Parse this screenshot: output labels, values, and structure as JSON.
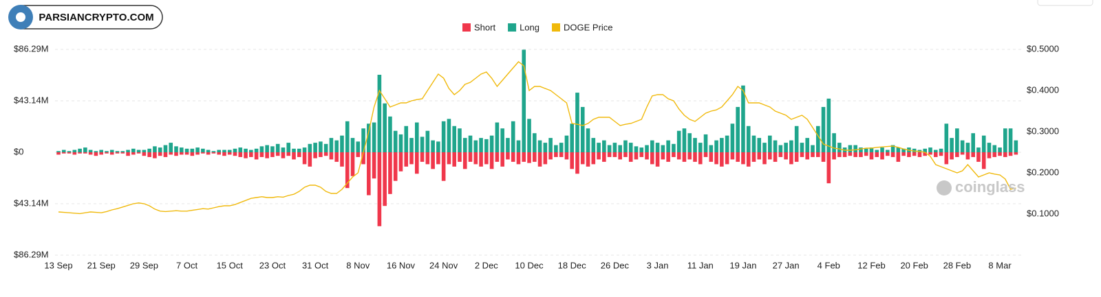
{
  "chart_data": {
    "type": "bar",
    "badge": "PARSIANCRYPTO.COM",
    "watermark": "coinglass",
    "categories": [
      "13 Sep",
      null,
      null,
      null,
      null,
      null,
      null,
      null,
      "21 Sep",
      null,
      null,
      null,
      null,
      null,
      null,
      null,
      "29 Sep",
      null,
      null,
      null,
      null,
      null,
      null,
      null,
      "7 Oct",
      null,
      null,
      null,
      null,
      null,
      null,
      null,
      "15 Oct",
      null,
      null,
      null,
      null,
      null,
      null,
      null,
      "23 Oct",
      null,
      null,
      null,
      null,
      null,
      null,
      null,
      "31 Oct",
      null,
      null,
      null,
      null,
      null,
      null,
      null,
      "8 Nov",
      null,
      null,
      null,
      null,
      null,
      null,
      null,
      "16 Nov",
      null,
      null,
      null,
      null,
      null,
      null,
      null,
      "24 Nov",
      null,
      null,
      null,
      null,
      null,
      null,
      null,
      "2 Dec",
      null,
      null,
      null,
      null,
      null,
      null,
      null,
      "10 Dec",
      null,
      null,
      null,
      null,
      null,
      null,
      null,
      "18 Dec",
      null,
      null,
      null,
      null,
      null,
      null,
      null,
      "26 Dec",
      null,
      null,
      null,
      null,
      null,
      null,
      null,
      "3 Jan",
      null,
      null,
      null,
      null,
      null,
      null,
      null,
      "11 Jan",
      null,
      null,
      null,
      null,
      null,
      null,
      null,
      "19 Jan",
      null,
      null,
      null,
      null,
      null,
      null,
      null,
      "27 Jan",
      null,
      null,
      null,
      null,
      null,
      null,
      null,
      "4 Feb",
      null,
      null,
      null,
      null,
      null,
      null,
      null,
      "12 Feb",
      null,
      null,
      null,
      null,
      null,
      null,
      null,
      "20 Feb",
      null,
      null,
      null,
      null,
      null,
      null,
      null,
      "28 Feb",
      null,
      null,
      null,
      null,
      null,
      null,
      null,
      "8 Mar",
      null,
      null,
      null
    ],
    "series": [
      {
        "name": "Short",
        "color": "#f0374b",
        "values": [
          -2,
          -1,
          -1,
          -2,
          -1,
          -1,
          -2,
          -3,
          -2,
          -1,
          -2,
          -1,
          -1,
          -3,
          -2,
          -1,
          -3,
          -4,
          -5,
          -3,
          -4,
          -2,
          -3,
          -2,
          -2,
          -3,
          -2,
          -1,
          -2,
          -1,
          -2,
          -3,
          -2,
          -3,
          -4,
          -5,
          -4,
          -6,
          -4,
          -5,
          -4,
          -3,
          -5,
          -3,
          -6,
          -4,
          -10,
          -12,
          -5,
          -4,
          -3,
          -6,
          -8,
          -12,
          -30,
          -20,
          -4,
          -10,
          -36,
          -22,
          -62,
          -45,
          -35,
          -24,
          -16,
          -12,
          -10,
          -18,
          -8,
          -10,
          -14,
          -10,
          -24,
          -10,
          -12,
          -8,
          -14,
          -8,
          -10,
          -12,
          -10,
          -14,
          -8,
          -12,
          -6,
          -8,
          -10,
          -8,
          -9,
          -8,
          -12,
          -10,
          -6,
          -4,
          -4,
          -6,
          -14,
          -18,
          -10,
          -12,
          -10,
          -6,
          -8,
          -4,
          -4,
          -6,
          -4,
          -8,
          -6,
          -4,
          -6,
          -10,
          -12,
          -6,
          -8,
          -4,
          -6,
          -8,
          -6,
          -8,
          -10,
          -4,
          -8,
          -10,
          -12,
          -10,
          -6,
          -8,
          -10,
          -12,
          -8,
          -6,
          -10,
          -6,
          -8,
          -4,
          -6,
          -10,
          -8,
          -4,
          -6,
          -4,
          -4,
          -8,
          -26,
          -6,
          -4,
          -4,
          -3,
          -4,
          -4,
          -3,
          -6,
          -4,
          -6,
          -3,
          -4,
          -8,
          -3,
          -4,
          -3,
          -4,
          -3,
          -2,
          -4,
          -3,
          -10,
          -6,
          -4,
          -2,
          -6,
          -4,
          -8,
          -14,
          -5,
          -4,
          -3,
          -4,
          -3,
          -2
        ]
      },
      {
        "name": "Long",
        "color": "#1fa58c",
        "values": [
          1,
          2,
          1,
          2,
          3,
          4,
          2,
          1,
          2,
          1,
          2,
          1,
          1,
          2,
          3,
          2,
          2,
          3,
          5,
          4,
          6,
          8,
          5,
          4,
          3,
          3,
          4,
          3,
          2,
          1,
          2,
          2,
          2,
          3,
          4,
          3,
          2,
          3,
          5,
          6,
          5,
          7,
          4,
          8,
          3,
          3,
          4,
          7,
          8,
          9,
          7,
          12,
          10,
          14,
          26,
          12,
          9,
          20,
          24,
          25,
          65,
          41,
          30,
          18,
          15,
          22,
          12,
          25,
          13,
          18,
          10,
          9,
          26,
          28,
          22,
          20,
          12,
          14,
          10,
          12,
          11,
          14,
          25,
          20,
          12,
          26,
          10,
          86,
          28,
          16,
          10,
          8,
          12,
          6,
          8,
          14,
          24,
          50,
          38,
          20,
          12,
          8,
          10,
          6,
          8,
          6,
          10,
          8,
          5,
          4,
          6,
          10,
          8,
          6,
          10,
          7,
          18,
          20,
          16,
          12,
          8,
          15,
          6,
          10,
          12,
          14,
          24,
          38,
          56,
          22,
          14,
          12,
          8,
          14,
          10,
          6,
          8,
          10,
          22,
          8,
          12,
          6,
          22,
          38,
          45,
          16,
          8,
          4,
          6,
          6,
          4,
          3,
          4,
          2,
          4,
          2,
          6,
          4,
          3,
          4,
          3,
          2,
          3,
          4,
          2,
          3,
          24,
          12,
          20,
          10,
          8,
          16,
          4,
          14,
          8,
          6,
          4,
          20,
          20,
          10
        ]
      },
      {
        "name": "DOGE Price",
        "color": "#f0b90b",
        "axis": "y2",
        "values": [
          0.105,
          0.104,
          0.103,
          0.102,
          0.101,
          0.103,
          0.105,
          0.104,
          0.103,
          0.106,
          0.11,
          0.113,
          0.117,
          0.121,
          0.125,
          0.127,
          0.125,
          0.12,
          0.112,
          0.107,
          0.106,
          0.107,
          0.108,
          0.107,
          0.107,
          0.109,
          0.111,
          0.113,
          0.112,
          0.115,
          0.118,
          0.12,
          0.12,
          0.123,
          0.128,
          0.133,
          0.138,
          0.14,
          0.142,
          0.14,
          0.14,
          0.142,
          0.141,
          0.145,
          0.148,
          0.155,
          0.165,
          0.17,
          0.17,
          0.165,
          0.155,
          0.15,
          0.15,
          0.16,
          0.175,
          0.19,
          0.2,
          0.25,
          0.3,
          0.36,
          0.4,
          0.38,
          0.36,
          0.365,
          0.37,
          0.37,
          0.375,
          0.378,
          0.38,
          0.4,
          0.42,
          0.44,
          0.43,
          0.405,
          0.39,
          0.4,
          0.415,
          0.42,
          0.43,
          0.44,
          0.445,
          0.43,
          0.41,
          0.425,
          0.44,
          0.455,
          0.47,
          0.46,
          0.4,
          0.41,
          0.41,
          0.405,
          0.4,
          0.39,
          0.38,
          0.37,
          0.32,
          0.318,
          0.315,
          0.32,
          0.33,
          0.335,
          0.335,
          0.335,
          0.325,
          0.315,
          0.318,
          0.32,
          0.325,
          0.33,
          0.36,
          0.387,
          0.39,
          0.39,
          0.38,
          0.375,
          0.355,
          0.34,
          0.33,
          0.325,
          0.335,
          0.345,
          0.35,
          0.353,
          0.36,
          0.375,
          0.39,
          0.41,
          0.4,
          0.37,
          0.37,
          0.37,
          0.365,
          0.36,
          0.35,
          0.345,
          0.34,
          0.33,
          0.335,
          0.34,
          0.33,
          0.31,
          0.29,
          0.27,
          0.265,
          0.26,
          0.258,
          0.255,
          0.255,
          0.256,
          0.258,
          0.26,
          0.26,
          0.262,
          0.263,
          0.264,
          0.265,
          0.262,
          0.258,
          0.255,
          0.253,
          0.252,
          0.25,
          0.24,
          0.22,
          0.215,
          0.21,
          0.205,
          0.2,
          0.205,
          0.22,
          0.205,
          0.19,
          0.195,
          0.2,
          0.197,
          0.195,
          0.185,
          0.16,
          0.163
        ]
      }
    ],
    "ylim": [
      -86.29,
      86.29
    ],
    "yticks": [
      {
        "value": -86.29,
        "label": "$86.29M"
      },
      {
        "value": -43.14,
        "label": "$43.14M"
      },
      {
        "value": 0,
        "label": "$0"
      },
      {
        "value": 43.14,
        "label": "$43.14M"
      },
      {
        "value": 86.29,
        "label": "$86.29M"
      }
    ],
    "y2lim": [
      0,
      0.5
    ],
    "y2ticks": [
      {
        "value": 0.1,
        "label": "$0.1000"
      },
      {
        "value": 0.2,
        "label": "$0.2000"
      },
      {
        "value": 0.3,
        "label": "$0.3000"
      },
      {
        "value": 0.4,
        "label": "$0.4000"
      },
      {
        "value": 0.5,
        "label": "$0.5000"
      }
    ],
    "grid": true
  }
}
